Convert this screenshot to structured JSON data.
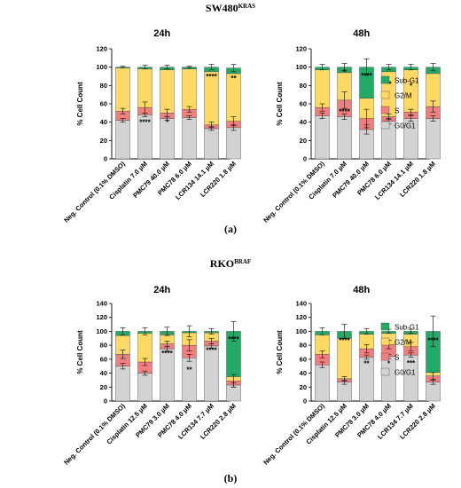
{
  "figure": {
    "panel_a": {
      "title_main": "SW480",
      "title_sup": "KRAS",
      "label": "(a)"
    },
    "panel_b": {
      "title_main": "RKO",
      "title_sup": "BRAF",
      "label": "(b)"
    }
  },
  "legend": {
    "entries": [
      {
        "name": "Sub-G1",
        "color": "#22aa66"
      },
      {
        "name": "G2/M",
        "color": "#ffd966"
      },
      {
        "name": "S",
        "color": "#f08080"
      },
      {
        "name": "G0/G1",
        "color": "#d3d3d3"
      }
    ]
  },
  "chart_data": [
    {
      "type": "bar",
      "stacked": true,
      "title": "24h",
      "ylabel": "% Cell Count",
      "ylim": [
        0,
        120
      ],
      "yticks": [
        0,
        20,
        40,
        60,
        80,
        100,
        120
      ],
      "categories": [
        "Neg. Control (0.1% DMSO)",
        "Cisplatin 7.0 µM",
        "PMC79 40.0 µM",
        "PMC78 6.0 µM",
        "LCR134 14.1 µM",
        "LCR220 1.8 µM"
      ],
      "series": [
        {
          "name": "G0/G1",
          "values": [
            42,
            48,
            44,
            45,
            33,
            34
          ]
        },
        {
          "name": "S",
          "values": [
            10,
            8,
            6,
            9,
            4,
            7
          ]
        },
        {
          "name": "G2/M",
          "values": [
            47,
            42,
            47,
            44,
            58,
            52
          ]
        },
        {
          "name": "Sub-G1",
          "values": [
            1,
            2,
            3,
            2,
            5,
            6
          ]
        }
      ],
      "errors": {
        "G0/G1": [
          2,
          2,
          2,
          2,
          2,
          3
        ],
        "S": [
          3,
          6,
          4,
          3,
          3,
          5
        ],
        "top": [
          1,
          2,
          2,
          1,
          3,
          4
        ]
      },
      "annotations": [
        {
          "category": 1,
          "level": 40,
          "text": "****"
        },
        {
          "category": 2,
          "level": 40,
          "text": "*"
        },
        {
          "category": 4,
          "level": 90,
          "text": "****"
        },
        {
          "category": 5,
          "level": 88,
          "text": "**"
        }
      ]
    },
    {
      "type": "bar",
      "stacked": true,
      "title": "48h",
      "ylabel": "% Cell Count",
      "ylim": [
        0,
        120
      ],
      "yticks": [
        0,
        20,
        40,
        60,
        80,
        100,
        120
      ],
      "categories": [
        "Neg. Control (0.1% DMSO)",
        "Cisplatin 7.0 µM",
        "PMC79 40.0 µM",
        "PMC78 6.0 µM",
        "LCR134 14.1 µM",
        "LCR220 1.8 µM"
      ],
      "series": [
        {
          "name": "G0/G1",
          "values": [
            47,
            46,
            32,
            41,
            44,
            44
          ]
        },
        {
          "name": "S",
          "values": [
            9,
            18,
            12,
            5,
            7,
            13
          ]
        },
        {
          "name": "G2/M",
          "values": [
            41,
            30,
            22,
            49,
            46,
            36
          ]
        },
        {
          "name": "Sub-G1",
          "values": [
            3,
            6,
            34,
            5,
            3,
            7
          ]
        }
      ],
      "errors": {
        "G0/G1": [
          3,
          3,
          5,
          3,
          3,
          3
        ],
        "S": [
          4,
          9,
          10,
          3,
          3,
          6
        ],
        "top": [
          3,
          4,
          9,
          3,
          3,
          4
        ]
      },
      "annotations": [
        {
          "category": 1,
          "level": 95,
          "text": "*"
        },
        {
          "category": 1,
          "level": 52,
          "text": "****"
        },
        {
          "category": 2,
          "level": 91,
          "text": "****"
        },
        {
          "category": 3,
          "level": 82,
          "text": "**"
        },
        {
          "category": 4,
          "level": 80,
          "text": "*"
        }
      ]
    },
    {
      "type": "bar",
      "stacked": true,
      "title": "24h",
      "ylabel": "% Cell Count",
      "ylim": [
        0,
        140
      ],
      "yticks": [
        0,
        20,
        40,
        60,
        80,
        100,
        120,
        140
      ],
      "categories": [
        "Neg. Control (0.1% DMSO)",
        "Cisplatin 12.5 µM",
        "PMC79 3.0 µM",
        "PMC78 4.0 µM",
        "LCR134 7.7 µM",
        "LCR220 2.8 µM"
      ],
      "series": [
        {
          "name": "G0/G1",
          "values": [
            50,
            40,
            75,
            62,
            79,
            23
          ]
        },
        {
          "name": "S",
          "values": [
            17,
            16,
            7,
            18,
            7,
            6
          ]
        },
        {
          "name": "G2/M",
          "values": [
            27,
            41,
            13,
            18,
            12,
            6
          ]
        },
        {
          "name": "Sub-G1",
          "values": [
            6,
            3,
            5,
            2,
            2,
            65
          ]
        }
      ],
      "errors": {
        "G0/G1": [
          4,
          3,
          3,
          5,
          3,
          3
        ],
        "S": [
          6,
          5,
          4,
          8,
          4,
          9
        ],
        "top": [
          5,
          5,
          6,
          8,
          4,
          14
        ]
      },
      "annotations": [
        {
          "category": 2,
          "level": 69,
          "text": "****"
        },
        {
          "category": 3,
          "level": 45,
          "text": "**"
        },
        {
          "category": 4,
          "level": 73,
          "text": "****"
        },
        {
          "category": 5,
          "level": 89,
          "text": "****"
        }
      ]
    },
    {
      "type": "bar",
      "stacked": true,
      "title": "48h",
      "ylabel": "% Cell Count",
      "ylim": [
        0,
        140
      ],
      "yticks": [
        0,
        20,
        40,
        60,
        80,
        100,
        120,
        140
      ],
      "categories": [
        "Neg. Control (0.1% DMSO)",
        "Cisplatin 12.5 µM",
        "PMC79 3.0 µM",
        "PMC78 4.0 µM",
        "LCR134 7.7 µM",
        "LCR220 2.8 µM"
      ],
      "series": [
        {
          "name": "G0/G1",
          "values": [
            52,
            27,
            63,
            64,
            66,
            27
          ]
        },
        {
          "name": "S",
          "values": [
            15,
            5,
            12,
            17,
            12,
            9
          ]
        },
        {
          "name": "G2/M",
          "values": [
            28,
            58,
            21,
            16,
            18,
            5
          ]
        },
        {
          "name": "Sub-G1",
          "values": [
            5,
            10,
            4,
            3,
            4,
            59
          ]
        }
      ],
      "errors": {
        "G0/G1": [
          4,
          3,
          3,
          3,
          3,
          3
        ],
        "S": [
          5,
          3,
          6,
          6,
          6,
          5
        ],
        "top": [
          5,
          10,
          4,
          3,
          3,
          22
        ]
      },
      "annotations": [
        {
          "category": 1,
          "level": 87,
          "text": "****"
        },
        {
          "category": 2,
          "level": 54,
          "text": "**"
        },
        {
          "category": 3,
          "level": 54,
          "text": "*"
        },
        {
          "category": 4,
          "level": 55,
          "text": "***"
        },
        {
          "category": 5,
          "level": 87,
          "text": "****"
        }
      ]
    }
  ]
}
